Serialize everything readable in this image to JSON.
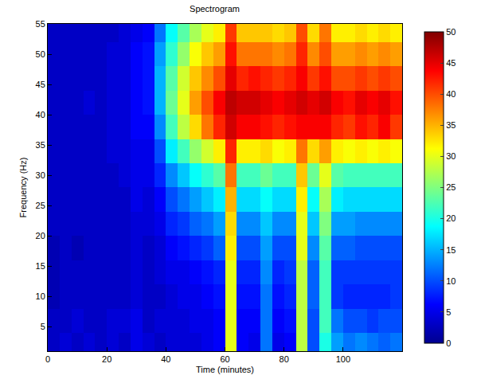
{
  "chart_data": {
    "type": "heatmap",
    "title": "Spectrogram",
    "x_label": "Time (minutes)",
    "y_label": "Frequency (Hz)",
    "color": "jet",
    "x": [
      2,
      6,
      10,
      14,
      18,
      22,
      26,
      30,
      34,
      38,
      42,
      46,
      50,
      54,
      58,
      62,
      66,
      70,
      74,
      78,
      82,
      86,
      90,
      94,
      98,
      102,
      106,
      110,
      114,
      118
    ],
    "y": [
      2,
      6,
      10,
      14,
      18,
      22,
      26,
      30,
      34,
      38,
      42,
      46,
      50,
      54
    ],
    "z": [
      [
        3,
        4,
        3,
        4,
        3,
        4,
        3,
        5,
        4,
        3,
        4,
        4,
        4,
        5,
        6,
        30,
        6,
        5,
        12,
        5,
        6,
        28,
        10,
        20,
        14,
        12,
        13,
        12,
        11,
        12
      ],
      [
        3,
        3,
        4,
        3,
        3,
        4,
        4,
        5,
        3,
        4,
        4,
        4,
        5,
        5,
        6,
        30,
        6,
        6,
        12,
        6,
        7,
        28,
        10,
        22,
        12,
        10,
        10,
        9,
        10,
        10
      ],
      [
        2,
        3,
        3,
        3,
        3,
        3,
        3,
        4,
        3,
        3,
        4,
        5,
        5,
        6,
        7,
        30,
        7,
        7,
        12,
        7,
        8,
        28,
        11,
        22,
        9,
        8,
        8,
        8,
        8,
        9
      ],
      [
        2,
        3,
        3,
        3,
        3,
        3,
        3,
        4,
        3,
        4,
        5,
        5,
        6,
        7,
        8,
        30,
        8,
        8,
        13,
        8,
        9,
        28,
        11,
        22,
        9,
        9,
        9,
        9,
        9,
        9
      ],
      [
        2,
        3,
        2,
        3,
        3,
        3,
        3,
        4,
        3,
        4,
        6,
        7,
        8,
        9,
        11,
        32,
        10,
        10,
        14,
        10,
        10,
        30,
        13,
        23,
        11,
        11,
        10,
        10,
        10,
        10
      ],
      [
        3,
        3,
        3,
        3,
        3,
        3,
        3,
        4,
        4,
        5,
        8,
        9,
        11,
        12,
        14,
        33,
        13,
        13,
        16,
        13,
        13,
        30,
        16,
        25,
        14,
        14,
        13,
        13,
        13,
        13
      ],
      [
        3,
        3,
        3,
        3,
        3,
        3,
        3,
        5,
        4,
        6,
        10,
        12,
        14,
        16,
        18,
        35,
        17,
        17,
        19,
        17,
        17,
        32,
        19,
        27,
        18,
        17,
        17,
        17,
        17,
        17
      ],
      [
        3,
        3,
        3,
        3,
        3,
        3,
        4,
        5,
        5,
        8,
        13,
        16,
        19,
        21,
        23,
        38,
        22,
        22,
        24,
        22,
        22,
        34,
        24,
        30,
        23,
        22,
        22,
        22,
        22,
        22
      ],
      [
        3,
        3,
        3,
        3,
        3,
        4,
        4,
        5,
        5,
        10,
        18,
        22,
        26,
        29,
        32,
        42,
        32,
        32,
        33,
        31,
        32,
        38,
        33,
        36,
        32,
        31,
        32,
        31,
        32,
        31
      ],
      [
        3,
        3,
        3,
        3,
        3,
        4,
        4,
        6,
        6,
        13,
        22,
        28,
        33,
        38,
        42,
        46,
        44,
        44,
        43,
        42,
        43,
        44,
        44,
        44,
        42,
        41,
        43,
        42,
        44,
        41
      ],
      [
        3,
        3,
        3,
        4,
        3,
        4,
        4,
        6,
        7,
        15,
        24,
        30,
        36,
        40,
        44,
        47,
        46,
        46,
        45,
        44,
        45,
        46,
        45,
        46,
        44,
        43,
        45,
        44,
        45,
        43
      ],
      [
        3,
        3,
        3,
        3,
        3,
        4,
        4,
        6,
        7,
        15,
        23,
        29,
        34,
        37,
        40,
        45,
        42,
        43,
        42,
        41,
        42,
        44,
        41,
        43,
        40,
        40,
        41,
        40,
        41,
        40
      ],
      [
        3,
        3,
        3,
        3,
        3,
        4,
        4,
        6,
        7,
        14,
        21,
        26,
        31,
        34,
        36,
        43,
        38,
        38,
        38,
        37,
        38,
        42,
        37,
        40,
        36,
        36,
        37,
        36,
        37,
        36
      ],
      [
        3,
        3,
        3,
        3,
        3,
        3,
        4,
        5,
        6,
        12,
        19,
        23,
        27,
        30,
        32,
        41,
        34,
        34,
        34,
        33,
        34,
        40,
        33,
        38,
        32,
        32,
        33,
        32,
        33,
        32
      ]
    ],
    "xlim": [
      0,
      120
    ],
    "ylim": [
      1,
      55
    ],
    "xticks": [
      0,
      20,
      40,
      60,
      80,
      100
    ],
    "yticks": [
      5,
      10,
      15,
      20,
      25,
      30,
      35,
      40,
      45,
      50,
      55
    ],
    "zlim": [
      0,
      50
    ],
    "zticks": [
      0,
      5,
      10,
      15,
      20,
      25,
      30,
      35,
      40,
      45,
      50
    ]
  }
}
